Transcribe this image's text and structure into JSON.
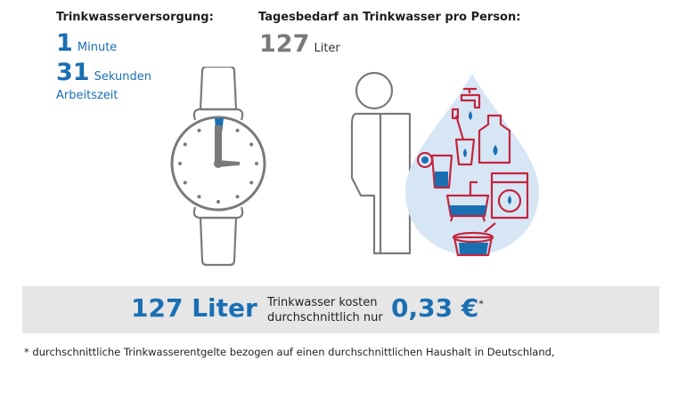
{
  "left": {
    "heading": "Trinkwasserversorgung:",
    "minutes_value": "1",
    "minutes_unit": "Minute",
    "seconds_value": "31",
    "seconds_unit": "Sekunden",
    "caption": "Arbeitszeit"
  },
  "right": {
    "heading": "Tagesbedarf an Trinkwasser pro Person:",
    "amount_value": "127",
    "amount_unit": "Liter"
  },
  "banner": {
    "liters": "127 Liter",
    "text_line1": "Trinkwasser kosten",
    "text_line2": "durchschnittlich nur",
    "price": "0,33 €",
    "asterisk": "*"
  },
  "footnote": "* durchschnittliche Trinkwasserentgelte bezogen auf einen durchschnittlichen Haushalt in Deutschland,",
  "colors": {
    "blue": "#1a6fb3",
    "red": "#c4253d",
    "grey": "#7a7a7a",
    "drop": "#d6e6f5",
    "banner": "#e7e6e6"
  },
  "icons": [
    "watch-icon",
    "person-icon",
    "water-drop-icon",
    "faucet-icon",
    "toothbrush-cup-icon",
    "glass-icon",
    "hot-water-bottle-icon",
    "cocktail-icon",
    "bathtub-icon",
    "washing-machine-icon",
    "cooking-pot-icon"
  ]
}
